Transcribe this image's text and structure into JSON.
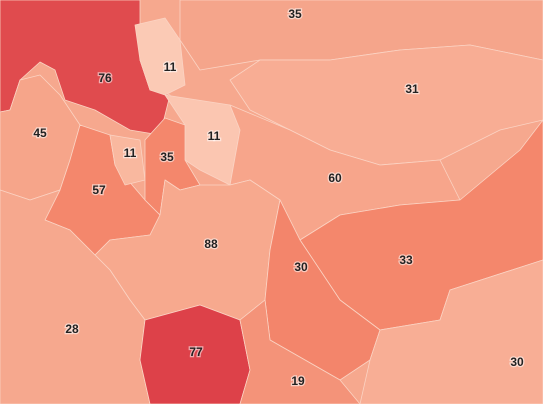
{
  "regions": [
    {
      "value": 35,
      "color": "#f5a58b"
    },
    {
      "value": 11,
      "color": "#fbcab5"
    },
    {
      "value": 76,
      "color": "#e04b4e"
    },
    {
      "value": 31,
      "color": "#f8ad94"
    },
    {
      "value": 45,
      "color": "#f6a58a"
    },
    {
      "value": 11,
      "color": "#f9b89f"
    },
    {
      "value": 35,
      "color": "#f4876c"
    },
    {
      "value": 11,
      "color": "#fbc6b1"
    },
    {
      "value": 60,
      "color": "#f7a58b"
    },
    {
      "value": 57,
      "color": "#f4876c"
    },
    {
      "value": 88,
      "color": "#f7a98e"
    },
    {
      "value": 30,
      "color": "#f3856b"
    },
    {
      "value": 33,
      "color": "#f4876c"
    },
    {
      "value": 28,
      "color": "#f6a88e"
    },
    {
      "value": 77,
      "color": "#dd4149"
    },
    {
      "value": 19,
      "color": "#f49379"
    },
    {
      "value": 30,
      "color": "#f8ae95"
    }
  ]
}
